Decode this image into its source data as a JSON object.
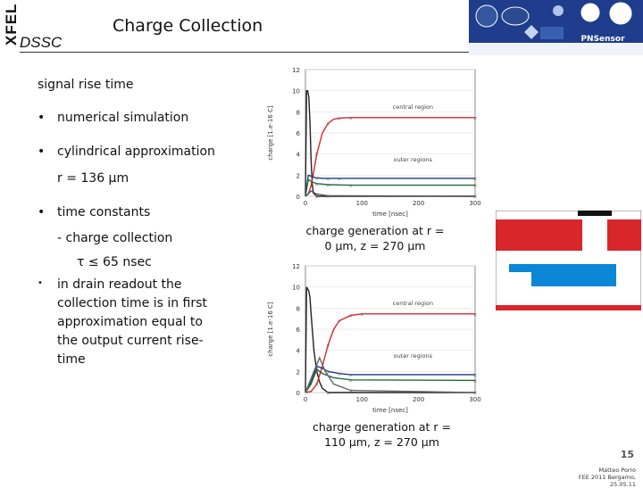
{
  "header": {
    "logo_text": "XFEL",
    "project": "DSSC",
    "title": "Charge Collection",
    "partner_logos": [
      "mpg-logo",
      "hll-logo",
      "desy-logo",
      "politecnico-logo",
      "heidelberg-logo",
      "siegen-logo",
      "bonn-logo",
      "pnsensor-logo"
    ],
    "pnsensor_text": "PNSensor"
  },
  "content": {
    "subtitle": "signal rise time",
    "bullets": [
      {
        "text": "numerical simulation"
      },
      {
        "text": "cylindrical approximation"
      },
      {
        "text": "r = 136 µm"
      },
      {
        "text": "time constants"
      },
      {
        "text": "- charge collection"
      },
      {
        "text": "τ  ≤  65 nsec"
      },
      {
        "text": "in drain readout the collection time is in first approximation equal to the output current rise-time"
      }
    ]
  },
  "notes": {
    "top": "charge generation at r = 0 µm, z = 270 µm",
    "bottom": "charge generation at r = 110 µm, z = 270 µm"
  },
  "footer": {
    "slide_number": "15",
    "author": "Matteo Porro",
    "event": "FEE 2011 Bergamo, 25.05.11"
  },
  "colors": {
    "red": "#d8262b",
    "blue": "#0c86d6",
    "central": "#d8262b",
    "outer": "#1f3a8c",
    "green": "#1e6e3a"
  },
  "chart_data": [
    {
      "type": "line",
      "title": "",
      "xlabel": "time [nsec]",
      "ylabel": "charge [1.e-16 C]",
      "xlim": [
        0,
        300
      ],
      "ylim": [
        0,
        12
      ],
      "xticks": [
        0,
        100,
        200,
        300
      ],
      "yticks": [
        0,
        2,
        4,
        6,
        8,
        10,
        12
      ],
      "annotations": [
        {
          "text": "central region",
          "x": 190,
          "y": 8.3
        },
        {
          "text": "outer regions",
          "x": 190,
          "y": 3.3
        }
      ],
      "series": [
        {
          "color": "#222222",
          "x": [
            0,
            2,
            4,
            6,
            8,
            10,
            12,
            14,
            20,
            30,
            300
          ],
          "values": [
            0,
            10,
            10,
            9.4,
            7,
            3.5,
            1.2,
            0.3,
            0,
            0,
            0
          ]
        },
        {
          "color": "#d8262b",
          "x": [
            0,
            5,
            10,
            15,
            20,
            30,
            40,
            50,
            60,
            80,
            300
          ],
          "values": [
            0,
            0.2,
            1,
            2.4,
            4,
            6,
            6.9,
            7.3,
            7.4,
            7.45,
            7.45
          ]
        },
        {
          "color": "#1f3a8c",
          "x": [
            0,
            5,
            10,
            15,
            20,
            30,
            40,
            60,
            300
          ],
          "values": [
            0,
            2,
            1.9,
            1.8,
            1.75,
            1.7,
            1.7,
            1.7,
            1.7
          ]
        },
        {
          "color": "#1e6e3a",
          "x": [
            0,
            5,
            10,
            15,
            20,
            40,
            80,
            300
          ],
          "values": [
            0,
            1.6,
            1.4,
            1.3,
            1.2,
            1.1,
            1.05,
            1.05
          ]
        },
        {
          "color": "#555555",
          "x": [
            0,
            10,
            20,
            40,
            300
          ],
          "values": [
            0,
            0.5,
            0.2,
            0.05,
            0
          ]
        }
      ]
    },
    {
      "type": "line",
      "title": "",
      "xlabel": "time [nsec]",
      "ylabel": "charge [1.e-16 C]",
      "xlim": [
        0,
        300
      ],
      "ylim": [
        0,
        12
      ],
      "xticks": [
        0,
        100,
        200,
        300
      ],
      "yticks": [
        0,
        2,
        4,
        6,
        8,
        10,
        12
      ],
      "annotations": [
        {
          "text": "central region",
          "x": 190,
          "y": 8.3
        },
        {
          "text": "outer regions",
          "x": 190,
          "y": 3.3
        }
      ],
      "series": [
        {
          "color": "#222222",
          "x": [
            0,
            2,
            4,
            6,
            8,
            10,
            15,
            20,
            25,
            30,
            40,
            300
          ],
          "values": [
            0,
            10,
            9.8,
            9.6,
            9,
            7.5,
            4,
            2,
            1,
            0.4,
            0,
            0
          ]
        },
        {
          "color": "#d8262b",
          "x": [
            0,
            10,
            20,
            30,
            40,
            50,
            60,
            80,
            100,
            300
          ],
          "values": [
            0,
            0.1,
            0.8,
            2.5,
            4.5,
            6,
            6.8,
            7.3,
            7.45,
            7.45
          ]
        },
        {
          "color": "#1f3a8c",
          "x": [
            0,
            10,
            20,
            30,
            40,
            60,
            80,
            300
          ],
          "values": [
            0,
            1,
            2.5,
            2.3,
            2,
            1.8,
            1.7,
            1.7
          ]
        },
        {
          "color": "#1e6e3a",
          "x": [
            0,
            10,
            20,
            30,
            50,
            80,
            300
          ],
          "values": [
            0,
            0.8,
            2.2,
            1.8,
            1.4,
            1.2,
            1.15
          ]
        },
        {
          "color": "#666666",
          "x": [
            0,
            15,
            25,
            35,
            50,
            80,
            300
          ],
          "values": [
            0,
            2,
            3.3,
            2,
            0.8,
            0.2,
            0
          ]
        }
      ]
    }
  ]
}
